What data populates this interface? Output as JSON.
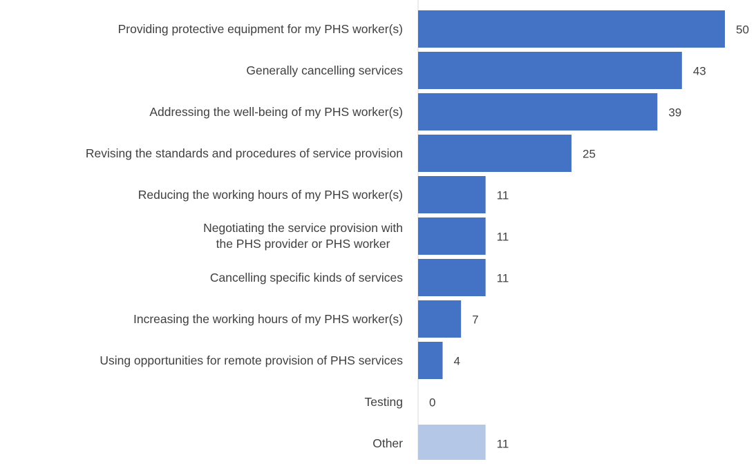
{
  "chart_data": {
    "type": "barh",
    "categories": [
      "Providing protective equipment for my PHS worker(s)",
      "Generally cancelling services",
      "Addressing the well-being of my PHS worker(s)",
      "Revising the standards and procedures of service provision",
      "Reducing the working hours of my PHS worker(s)",
      "Negotiating the service provision with\nthe PHS provider or PHS worker",
      "Cancelling specific kinds of services",
      "Increasing the working hours of my PHS worker(s)",
      "Using opportunities for remote provision of PHS services",
      "Testing",
      "Other"
    ],
    "values": [
      50,
      43,
      39,
      25,
      11,
      11,
      11,
      7,
      4,
      0,
      11
    ],
    "colors": [
      "#4472c4",
      "#4472c4",
      "#4472c4",
      "#4472c4",
      "#4472c4",
      "#4472c4",
      "#4472c4",
      "#4472c4",
      "#4472c4",
      "#4472c4",
      "#b4c7e7"
    ]
  }
}
